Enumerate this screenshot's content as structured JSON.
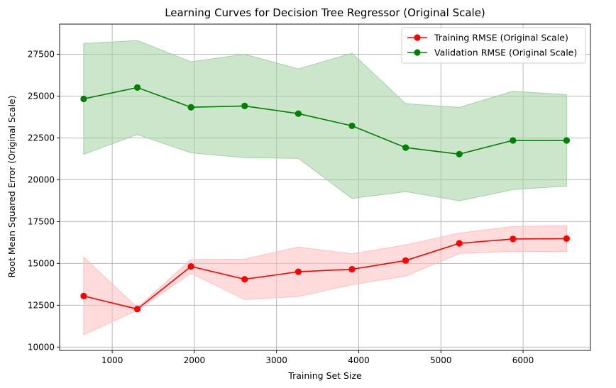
{
  "chart_data": {
    "type": "line",
    "title": "Learning Curves for Decision Tree Regressor (Original Scale)",
    "xlabel": "Training Set Size",
    "ylabel": "Root Mean Squared Error (Original Scale)",
    "xlim": [
      360,
      6820
    ],
    "ylim": [
      9800,
      29300
    ],
    "xticks": [
      1000,
      2000,
      3000,
      4000,
      5000,
      6000
    ],
    "yticks": [
      10000,
      12500,
      15000,
      17500,
      20000,
      22500,
      25000,
      27500
    ],
    "grid": true,
    "legend_position": "top-right",
    "x": [
      653,
      1306,
      1959,
      2612,
      3265,
      3918,
      4571,
      5224,
      5877,
      6530
    ],
    "series": [
      {
        "name": "Training RMSE (Original Scale)",
        "color": "#ff0000",
        "band_color": "#ffbfbf",
        "values": [
          13050,
          12270,
          14820,
          14050,
          14500,
          14650,
          15170,
          16200,
          16460,
          16480
        ],
        "upper": [
          15380,
          12350,
          15230,
          15250,
          15980,
          15570,
          16100,
          16810,
          17200,
          17250
        ],
        "lower": [
          10740,
          12190,
          14410,
          12850,
          13020,
          13730,
          14240,
          15590,
          15720,
          15710
        ]
      },
      {
        "name": "Validation RMSE (Original Scale)",
        "color": "#008000",
        "band_color": "#a3d1a3",
        "values": [
          24830,
          25510,
          24330,
          24410,
          23950,
          23220,
          21920,
          21530,
          22350,
          22350
        ],
        "upper": [
          28140,
          28320,
          27050,
          27500,
          26620,
          27560,
          24550,
          24320,
          25290,
          25080
        ],
        "lower": [
          21520,
          22700,
          21610,
          21320,
          21280,
          18880,
          19290,
          18740,
          19410,
          19620
        ]
      }
    ]
  }
}
